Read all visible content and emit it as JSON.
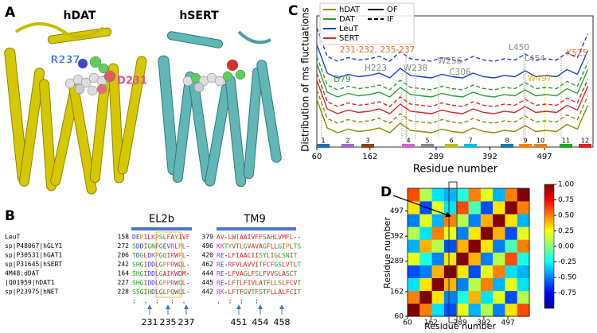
{
  "panel_a": {
    "label": "A",
    "proteins": [
      {
        "name": "hDAT",
        "residues": [
          "R237",
          "D231"
        ]
      },
      {
        "name": "hSERT"
      }
    ]
  },
  "panel_b": {
    "label": "B",
    "headers": [
      "EL2b",
      "TM9"
    ],
    "rows": [
      {
        "name": "LeuT",
        "el2b_start": 158,
        "el2b_seq": "DEPILKPSLFAYIVF",
        "tm9_start": 379,
        "tm9_seq": "AV-LWTAAIVFFSAHLVMFL--"
      },
      {
        "name": "sp|P48067|hGLY1",
        "el2b_start": 272,
        "el2b_seq": "SDDIGNFGEVRLPL-",
        "tm9_start": 496,
        "tm9_seq": "KKTYVTLGVAVAGFLLGIPLTS"
      },
      {
        "name": "sp|P30531|hGAT1",
        "el2b_start": 206,
        "el2b_seq": "TDGLDKPGQIRWPL-",
        "tm9_start": 420,
        "tm9_seq": "RE-LFIAACIISYLIGLSNIT"
      },
      {
        "name": "sp|P31645|hSERT",
        "el2b_start": 242,
        "el2b_seq": "SHGIDDLGPPRWQL-",
        "tm9_start": 462,
        "tm9_seq": "RE-RFVLAVVITFCFGSLVTLT"
      },
      {
        "name": "4M48:dDAT",
        "el2b_start": 164,
        "el2b_seq": "SHGIDDLGAIKWDM-",
        "tm9_start": 444,
        "tm9_seq": "RE-LFVAGLFSLFVVGLASCT"
      },
      {
        "name": "|Q01959|hDAT1",
        "el2b_start": 227,
        "el2b_seq": "SHGIDDLGPPRWQL-",
        "tm9_start": 445,
        "tm9_seq": "RE-LFTLFIVLATFLLSLFCVT"
      },
      {
        "name": "sp|P23975|hNET",
        "el2b_start": 228,
        "el2b_seq": "SSGIHDLGLPQWQL-",
        "tm9_start": 442,
        "tm9_seq": "RK-LFTFGVTFSTFLLALFCIT"
      }
    ],
    "conservation": [
      ":  .  :   :  .",
      ".  :  :   :"
    ],
    "markers": [
      [
        231,
        235,
        237
      ],
      [
        451,
        454,
        458
      ]
    ]
  },
  "chart_data": [
    {
      "type": "line",
      "panel": "C",
      "y_label": "Distribution of ms fluctuations",
      "x_label": "Residue number",
      "x": [
        60,
        80,
        100,
        120,
        140,
        160,
        180,
        200,
        220,
        240,
        260,
        280,
        300,
        320,
        340,
        360,
        380,
        400,
        420,
        440,
        460,
        480,
        500,
        520,
        540,
        560,
        580
      ],
      "xlim": [
        60,
        590
      ],
      "xticks": [
        60,
        162,
        289,
        392,
        497
      ],
      "ylim": [
        0,
        11
      ],
      "line_styles": [
        {
          "label": "OF",
          "dashed": false
        },
        {
          "label": "IF",
          "dashed": true
        }
      ],
      "series": [
        {
          "name": "hDAT",
          "color": "#8b8b00",
          "values": [
            4.0,
            1.6,
            1.2,
            1.5,
            1.3,
            1.4,
            1.6,
            1.2,
            2.0,
            1.4,
            1.3,
            1.2,
            1.5,
            1.3,
            1.2,
            1.6,
            1.3,
            1.2,
            1.4,
            1.3,
            1.8,
            1.3,
            1.4,
            1.3,
            1.9,
            1.5,
            3.5
          ],
          "if_values": [
            4.8,
            2.4,
            2.0,
            2.3,
            2.1,
            2.2,
            2.4,
            2.0,
            2.8,
            2.2,
            2.1,
            2.0,
            2.3,
            2.1,
            2.0,
            2.4,
            2.1,
            2.0,
            2.2,
            2.1,
            2.6,
            2.1,
            2.2,
            2.1,
            2.7,
            2.3,
            4.3
          ]
        },
        {
          "name": "DAT",
          "color": "#2ca02c",
          "values": [
            7.0,
            4.6,
            4.2,
            4.5,
            4.3,
            4.4,
            4.6,
            4.2,
            5.0,
            4.4,
            4.3,
            4.2,
            4.5,
            4.3,
            4.2,
            4.6,
            4.3,
            4.2,
            4.4,
            4.3,
            4.8,
            4.3,
            4.4,
            4.3,
            4.9,
            4.5,
            6.5
          ],
          "if_values": [
            7.6,
            5.2,
            4.8,
            5.1,
            4.9,
            5.0,
            5.2,
            4.8,
            5.6,
            5.0,
            4.9,
            4.8,
            5.1,
            4.9,
            4.8,
            5.2,
            4.9,
            4.8,
            5.0,
            4.9,
            5.4,
            4.9,
            5.0,
            4.9,
            5.5,
            5.1,
            7.1
          ]
        },
        {
          "name": "LeuT",
          "color": "#1f3fd0",
          "values": [
            8.6,
            6.2,
            5.8,
            6.1,
            5.9,
            6.0,
            6.2,
            5.8,
            6.6,
            6.0,
            5.9,
            5.8,
            6.1,
            5.9,
            5.8,
            6.2,
            5.9,
            5.8,
            6.0,
            5.9,
            6.4,
            5.9,
            6.0,
            5.9,
            6.5,
            6.1,
            8.1
          ],
          "if_values": [
            10.0,
            7.6,
            7.2,
            7.5,
            7.3,
            7.4,
            7.6,
            7.2,
            8.0,
            7.4,
            7.3,
            7.2,
            7.5,
            7.3,
            7.2,
            7.6,
            7.3,
            7.2,
            7.4,
            7.3,
            7.8,
            7.3,
            7.4,
            7.3,
            7.9,
            7.5,
            9.5
          ]
        },
        {
          "name": "SERT",
          "color": "#d62728",
          "values": [
            5.6,
            3.2,
            2.8,
            3.1,
            2.9,
            3.0,
            3.2,
            2.8,
            3.6,
            3.0,
            2.9,
            2.8,
            3.1,
            2.9,
            2.8,
            3.2,
            2.9,
            2.8,
            3.0,
            2.9,
            3.4,
            2.9,
            3.0,
            2.9,
            3.5,
            3.1,
            5.1
          ],
          "if_values": [
            6.2,
            3.8,
            3.4,
            3.7,
            3.5,
            3.6,
            3.8,
            3.4,
            4.2,
            3.6,
            3.5,
            3.4,
            3.7,
            3.5,
            3.4,
            3.8,
            3.5,
            3.4,
            3.6,
            3.5,
            4.0,
            3.5,
            3.6,
            3.5,
            4.1,
            3.7,
            5.7
          ]
        }
      ],
      "annotations": [
        "D79",
        "H223",
        "231-232, 235-237",
        "W238",
        "W256",
        "C306",
        "L450",
        "L454",
        "W497",
        "K525"
      ],
      "segments": [
        {
          "label": "1",
          "color": "#2b6cb0"
        },
        {
          "label": "2",
          "color": "#9b6bcc"
        },
        {
          "label": "3",
          "color": "#8b4513"
        },
        {
          "label": "4",
          "color": "#cc66cc"
        },
        {
          "label": "5",
          "color": "#888888"
        },
        {
          "label": "6",
          "color": "#bcbd22"
        },
        {
          "label": "7",
          "color": "#17becf"
        },
        {
          "label": "8",
          "color": "#1f77b4"
        },
        {
          "label": "9",
          "color": "#ff7f0e"
        },
        {
          "label": "10",
          "color": "#e08030"
        },
        {
          "label": "11",
          "color": "#2ca02c"
        },
        {
          "label": "12",
          "color": "#d62728"
        }
      ]
    },
    {
      "type": "heatmap",
      "panel": "D",
      "x_label": "Residue number",
      "y_label": "Residue number",
      "xlim": [
        60,
        590
      ],
      "ylim": [
        60,
        590
      ],
      "xticks": [
        60,
        162,
        289,
        392,
        497
      ],
      "yticks": [
        60,
        162,
        289,
        392,
        497
      ],
      "zlim": [
        -1,
        1
      ],
      "zticks": [
        -0.75,
        {
          "value": -0.5,
          "label": "-0.50"
        },
        -0.25,
        {
          "value": 0,
          "label": "0.00"
        },
        0.25,
        {
          "value": 0.5,
          "label": "0.50"
        },
        0.75,
        {
          "value": 1,
          "label": "1.00"
        }
      ],
      "z": [
        [
          1.0,
          0.5,
          -0.3,
          -0.6,
          0.2,
          -0.4,
          0.1,
          -0.5,
          0.3,
          0.6
        ],
        [
          0.5,
          1.0,
          0.3,
          -0.5,
          -0.2,
          0.4,
          -0.3,
          0.2,
          -0.6,
          0.1
        ],
        [
          -0.3,
          0.3,
          1.0,
          0.4,
          -0.5,
          0.1,
          0.5,
          -0.4,
          0.2,
          -0.3
        ],
        [
          -0.6,
          -0.5,
          0.4,
          1.0,
          0.3,
          -0.6,
          0.2,
          0.5,
          -0.3,
          -0.4
        ],
        [
          0.2,
          -0.2,
          -0.5,
          0.3,
          1.0,
          0.4,
          -0.5,
          0.1,
          0.6,
          -0.2
        ],
        [
          -0.4,
          0.4,
          0.1,
          -0.6,
          0.4,
          1.0,
          0.3,
          -0.5,
          -0.1,
          0.5
        ],
        [
          0.1,
          -0.3,
          0.5,
          0.2,
          -0.5,
          0.3,
          1.0,
          0.4,
          -0.6,
          0.2
        ],
        [
          -0.5,
          0.2,
          -0.4,
          0.5,
          0.1,
          -0.5,
          0.4,
          1.0,
          0.3,
          -0.4
        ],
        [
          0.3,
          -0.6,
          0.2,
          -0.3,
          0.6,
          -0.1,
          -0.6,
          0.3,
          1.0,
          0.5
        ],
        [
          0.6,
          0.1,
          -0.3,
          -0.4,
          -0.2,
          0.5,
          0.2,
          -0.4,
          0.5,
          1.0
        ]
      ]
    }
  ]
}
